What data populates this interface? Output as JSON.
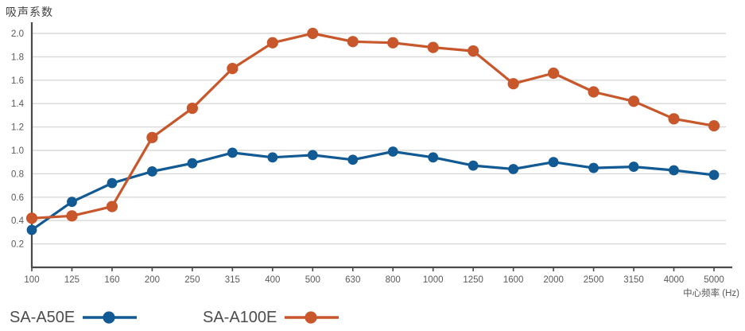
{
  "chart_data": {
    "type": "line",
    "title": "吸声系数",
    "xlabel": "中心频率 (Hz)",
    "ylabel": "吸声系数",
    "categories": [
      "100",
      "125",
      "160",
      "200",
      "250",
      "315",
      "400",
      "500",
      "630",
      "800",
      "1000",
      "1250",
      "1600",
      "2000",
      "2500",
      "3150",
      "4000",
      "5000"
    ],
    "y_ticks": [
      "0.2",
      "0.4",
      "0.6",
      "0.8",
      "1.0",
      "1.2",
      "1.4",
      "1.6",
      "1.8",
      "2.0"
    ],
    "ylim": [
      0,
      2.1
    ],
    "grid": true,
    "legend_position": "bottom-left",
    "series": [
      {
        "name": "SA-A50E",
        "color": "#115a93",
        "values": [
          0.32,
          0.56,
          0.72,
          0.82,
          0.89,
          0.98,
          0.94,
          0.96,
          0.92,
          0.99,
          0.94,
          0.87,
          0.84,
          0.9,
          0.85,
          0.86,
          0.83,
          0.79
        ]
      },
      {
        "name": "SA-A100E",
        "color": "#c8572c",
        "values": [
          0.42,
          0.44,
          0.52,
          1.11,
          1.36,
          1.7,
          1.92,
          2.0,
          1.93,
          1.92,
          1.88,
          1.85,
          1.57,
          1.66,
          1.5,
          1.42,
          1.27,
          1.21
        ]
      }
    ],
    "style": {
      "grid_color": "#d8d8d8",
      "axis_color": "#4a4a4a",
      "tick_label_color": "#595959",
      "title_color": "#3f3f3f",
      "legend_text_color": "#4d4d4d"
    }
  }
}
